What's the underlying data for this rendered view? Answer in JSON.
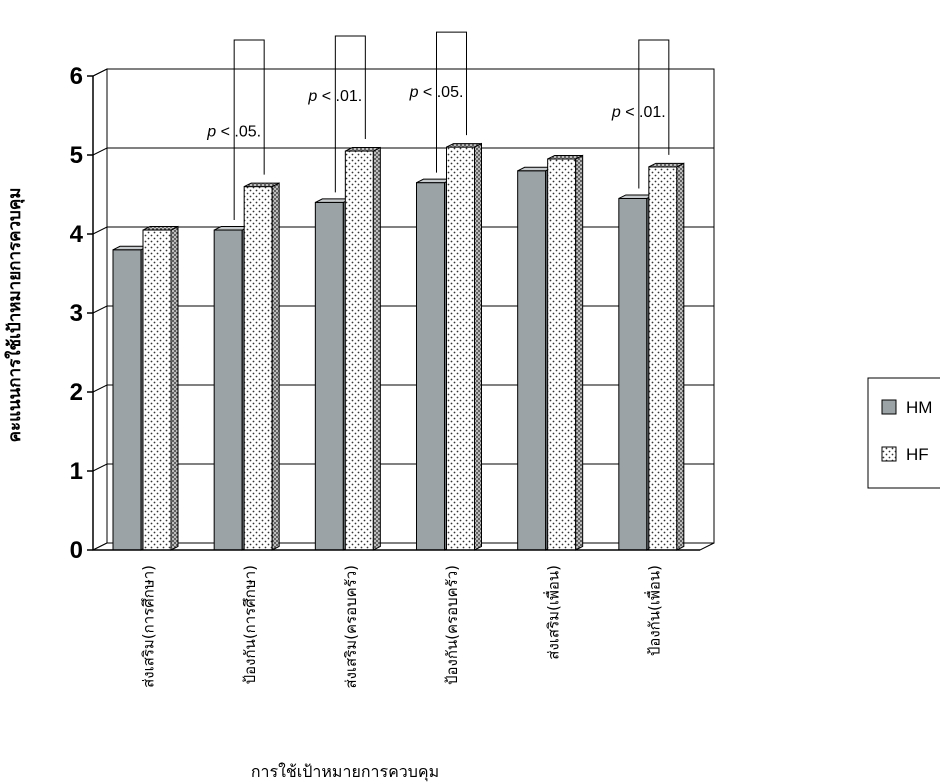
{
  "chart_data": {
    "type": "bar",
    "title": "",
    "xlabel": "การใช้เป้าหมายการควบคุม",
    "ylabel": "คะแนนการใช้เป้าหมายการควบคุม",
    "ylim": [
      0,
      6
    ],
    "yticks": [
      "0",
      "1",
      "2",
      "3",
      "4",
      "5",
      "6"
    ],
    "grid": true,
    "legend_position": "right",
    "categories": [
      "ส่งเสริม(การศึกษา)",
      "ป้องกัน(การศึกษา)",
      "ส่งเสริม(ครอบครัว)",
      "ป้องกัน(ครอบครัว)",
      "ส่งเสริม(เพื่อน)",
      "ป้องกัน(เพื่อน)"
    ],
    "series": [
      {
        "name": "HM",
        "values": [
          3.8,
          4.05,
          4.4,
          4.65,
          4.8,
          4.45
        ],
        "color": "#9ca3a6",
        "pattern": "solid"
      },
      {
        "name": "HF",
        "values": [
          4.05,
          4.6,
          5.05,
          5.1,
          4.95,
          4.85
        ],
        "color": "#ffffff",
        "pattern": "dotted"
      }
    ],
    "annotations": [
      {
        "category_index": 1,
        "text": "p < .05."
      },
      {
        "category_index": 2,
        "text": "p < .01."
      },
      {
        "category_index": 3,
        "text": "p < .05."
      },
      {
        "category_index": 5,
        "text": "p < .01."
      }
    ]
  }
}
